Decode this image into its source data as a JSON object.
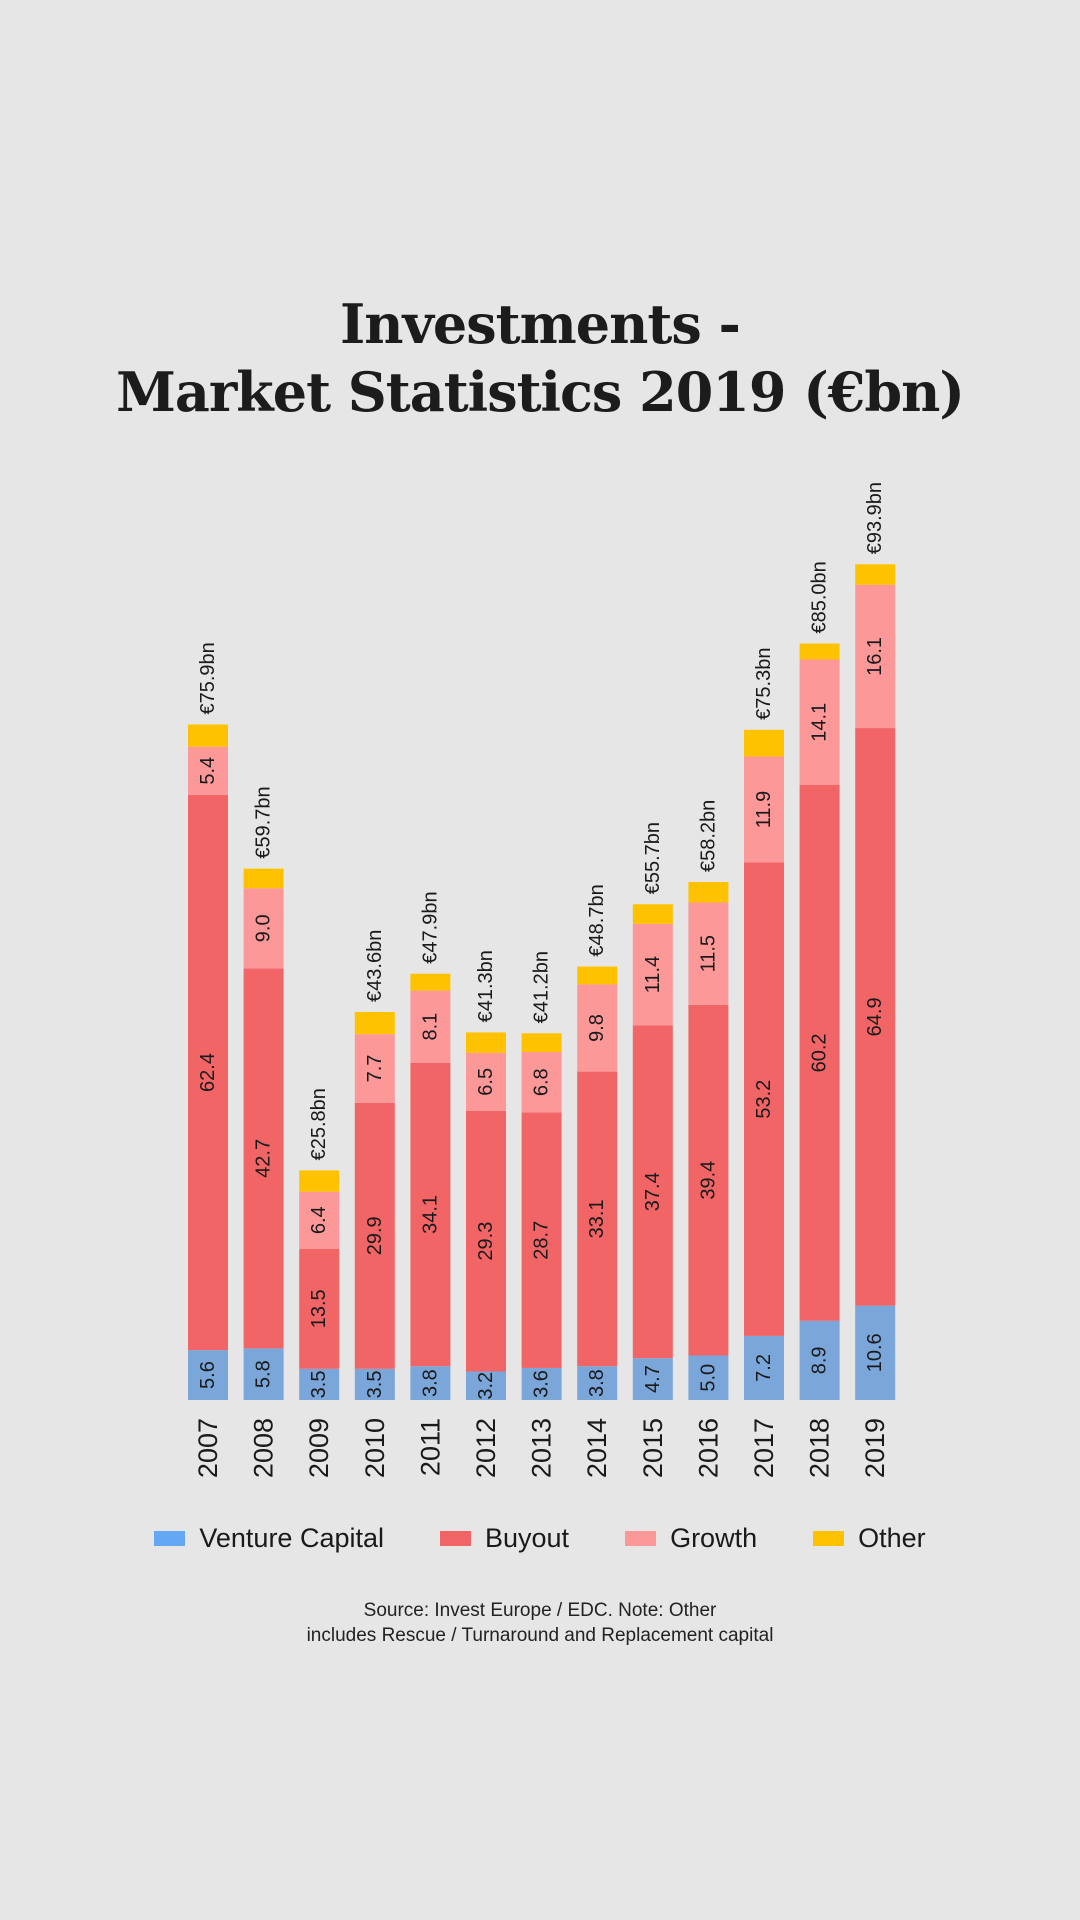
{
  "title_lines": [
    "Investments -",
    "Market Statistics 2019 (€bn)"
  ],
  "colors": {
    "venture_capital": "#7aa6d9",
    "buyout": "#f26566",
    "growth": "#fd9899",
    "other": "#fec200",
    "background": "#e6e6e6",
    "legend_venture_capital": "#64a8f5"
  },
  "chart_data": {
    "type": "bar",
    "stacked": true,
    "title": "Investments - Market Statistics 2019 (€bn)",
    "xlabel": "",
    "ylabel": "",
    "unit": "€bn",
    "categories": [
      "2007",
      "2008",
      "2009",
      "2010",
      "2011",
      "2012",
      "2013",
      "2014",
      "2015",
      "2016",
      "2017",
      "2018",
      "2019"
    ],
    "series": [
      {
        "name": "Venture Capital",
        "key": "venture_capital",
        "values": [
          5.6,
          5.8,
          3.5,
          3.5,
          3.8,
          3.2,
          3.6,
          3.8,
          4.7,
          5.0,
          7.2,
          8.9,
          10.6
        ],
        "labeled": true
      },
      {
        "name": "Buyout",
        "key": "buyout",
        "values": [
          62.4,
          42.7,
          13.5,
          29.9,
          34.1,
          29.3,
          28.7,
          33.1,
          37.4,
          39.4,
          53.2,
          60.2,
          64.9
        ],
        "labeled": true
      },
      {
        "name": "Growth",
        "key": "growth",
        "values": [
          5.4,
          9.0,
          6.4,
          7.7,
          8.1,
          6.5,
          6.8,
          9.8,
          11.4,
          11.5,
          11.9,
          14.1,
          16.1
        ],
        "labeled": true
      },
      {
        "name": "Other",
        "key": "other",
        "values": [
          2.5,
          2.2,
          2.4,
          2.5,
          1.9,
          2.3,
          2.1,
          2.0,
          2.2,
          2.3,
          3.0,
          1.8,
          2.3
        ],
        "labeled": false
      }
    ],
    "totals": [
      75.9,
      59.7,
      25.8,
      43.6,
      47.9,
      41.3,
      41.2,
      48.7,
      55.7,
      58.2,
      75.3,
      85.0,
      93.9
    ],
    "total_labels": [
      "€75.9bn",
      "€59.7bn",
      "€25.8bn",
      "€43.6bn",
      "€47.9bn",
      "€41.3bn",
      "€41.2bn",
      "€48.7bn",
      "€55.7bn",
      "€58.2bn",
      "€75.3bn",
      "€85.0bn",
      "€93.9bn"
    ],
    "ylim": [
      0,
      100
    ],
    "grid": false,
    "legend_position": "bottom",
    "label_orientation": "vertical"
  },
  "legend": [
    {
      "label": "Venture Capital",
      "key": "legend_venture_capital"
    },
    {
      "label": "Buyout",
      "key": "buyout"
    },
    {
      "label": "Growth",
      "key": "growth"
    },
    {
      "label": "Other",
      "key": "other"
    }
  ],
  "source_lines": [
    "Source: Invest Europe / EDC. Note: Other",
    "includes Rescue / Turnaround and Replacement capital"
  ]
}
